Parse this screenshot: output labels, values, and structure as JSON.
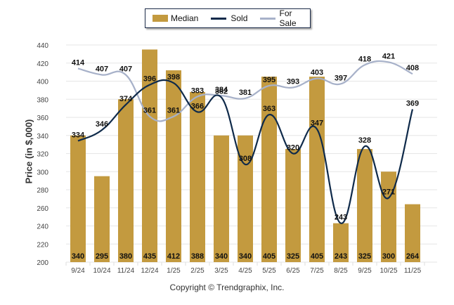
{
  "chart_data": {
    "type": "bar",
    "title": "",
    "xlabel": "",
    "ylabel": "Price (in $,000)",
    "ylim": [
      200,
      440
    ],
    "yticks": [
      200,
      220,
      240,
      260,
      280,
      300,
      320,
      340,
      360,
      380,
      400,
      420,
      440
    ],
    "grid": true,
    "legend_position": "top-center",
    "categories": [
      "9/24",
      "10/24",
      "11/24",
      "12/24",
      "1/25",
      "2/25",
      "3/25",
      "4/25",
      "5/25",
      "6/25",
      "7/25",
      "8/25",
      "9/25",
      "10/25",
      "11/25"
    ],
    "series": [
      {
        "name": "Median",
        "kind": "bar",
        "color": "#c39a3f",
        "values": [
          340,
          295,
          380,
          435,
          412,
          388,
          340,
          340,
          405,
          325,
          405,
          243,
          325,
          300,
          264
        ]
      },
      {
        "name": "Sold",
        "kind": "line",
        "color": "#0f2a4a",
        "values": [
          334,
          346,
          374,
          396,
          398,
          366,
          382,
          308,
          363,
          320,
          347,
          243,
          328,
          271,
          369
        ]
      },
      {
        "name": "For Sale",
        "kind": "line",
        "color": "#a7b1c9",
        "values": [
          414,
          407,
          407,
          361,
          361,
          383,
          384,
          381,
          395,
          393,
          403,
          397,
          418,
          421,
          408
        ]
      }
    ]
  },
  "legend": {
    "items": [
      {
        "label": "Median",
        "color": "#c39a3f"
      },
      {
        "label": "Sold",
        "color": "#0f2a4a"
      },
      {
        "label": "For Sale",
        "color": "#a7b1c9"
      }
    ]
  },
  "footer": {
    "copyright": "Copyright © Trendgraphix, Inc."
  }
}
